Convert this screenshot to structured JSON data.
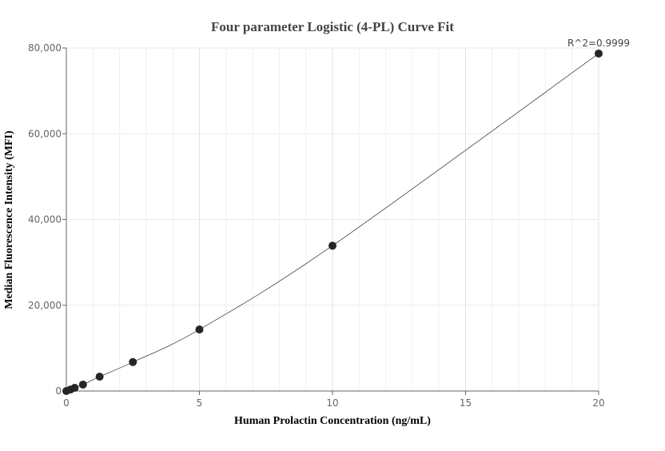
{
  "chart_data": {
    "type": "scatter",
    "title": "Four parameter Logistic (4-PL) Curve Fit",
    "xlabel": "Human Prolactin Concentration (ng/mL)",
    "ylabel": "Median Fluorescence Intensity (MFI)",
    "xlim": [
      0,
      20
    ],
    "ylim": [
      0,
      80000
    ],
    "xticks": [
      0,
      5,
      10,
      15,
      20
    ],
    "xtick_labels": [
      "0",
      "5",
      "10",
      "15",
      "20"
    ],
    "yticks": [
      0,
      20000,
      40000,
      60000,
      80000
    ],
    "ytick_labels": [
      "0",
      "20,000",
      "40,000",
      "60,000",
      "80,000"
    ],
    "grid": true,
    "annotation": "R^2=0.9999",
    "points": {
      "x": [
        0,
        0.156,
        0.3125,
        0.625,
        1.25,
        2.5,
        5,
        10,
        20
      ],
      "y": [
        0,
        350,
        750,
        1500,
        3350,
        6750,
        14350,
        33900,
        78700
      ]
    },
    "colors": {
      "point": "#262626",
      "curve": "#444444",
      "grid": "#e6eaf2",
      "axis": "#666666"
    }
  }
}
